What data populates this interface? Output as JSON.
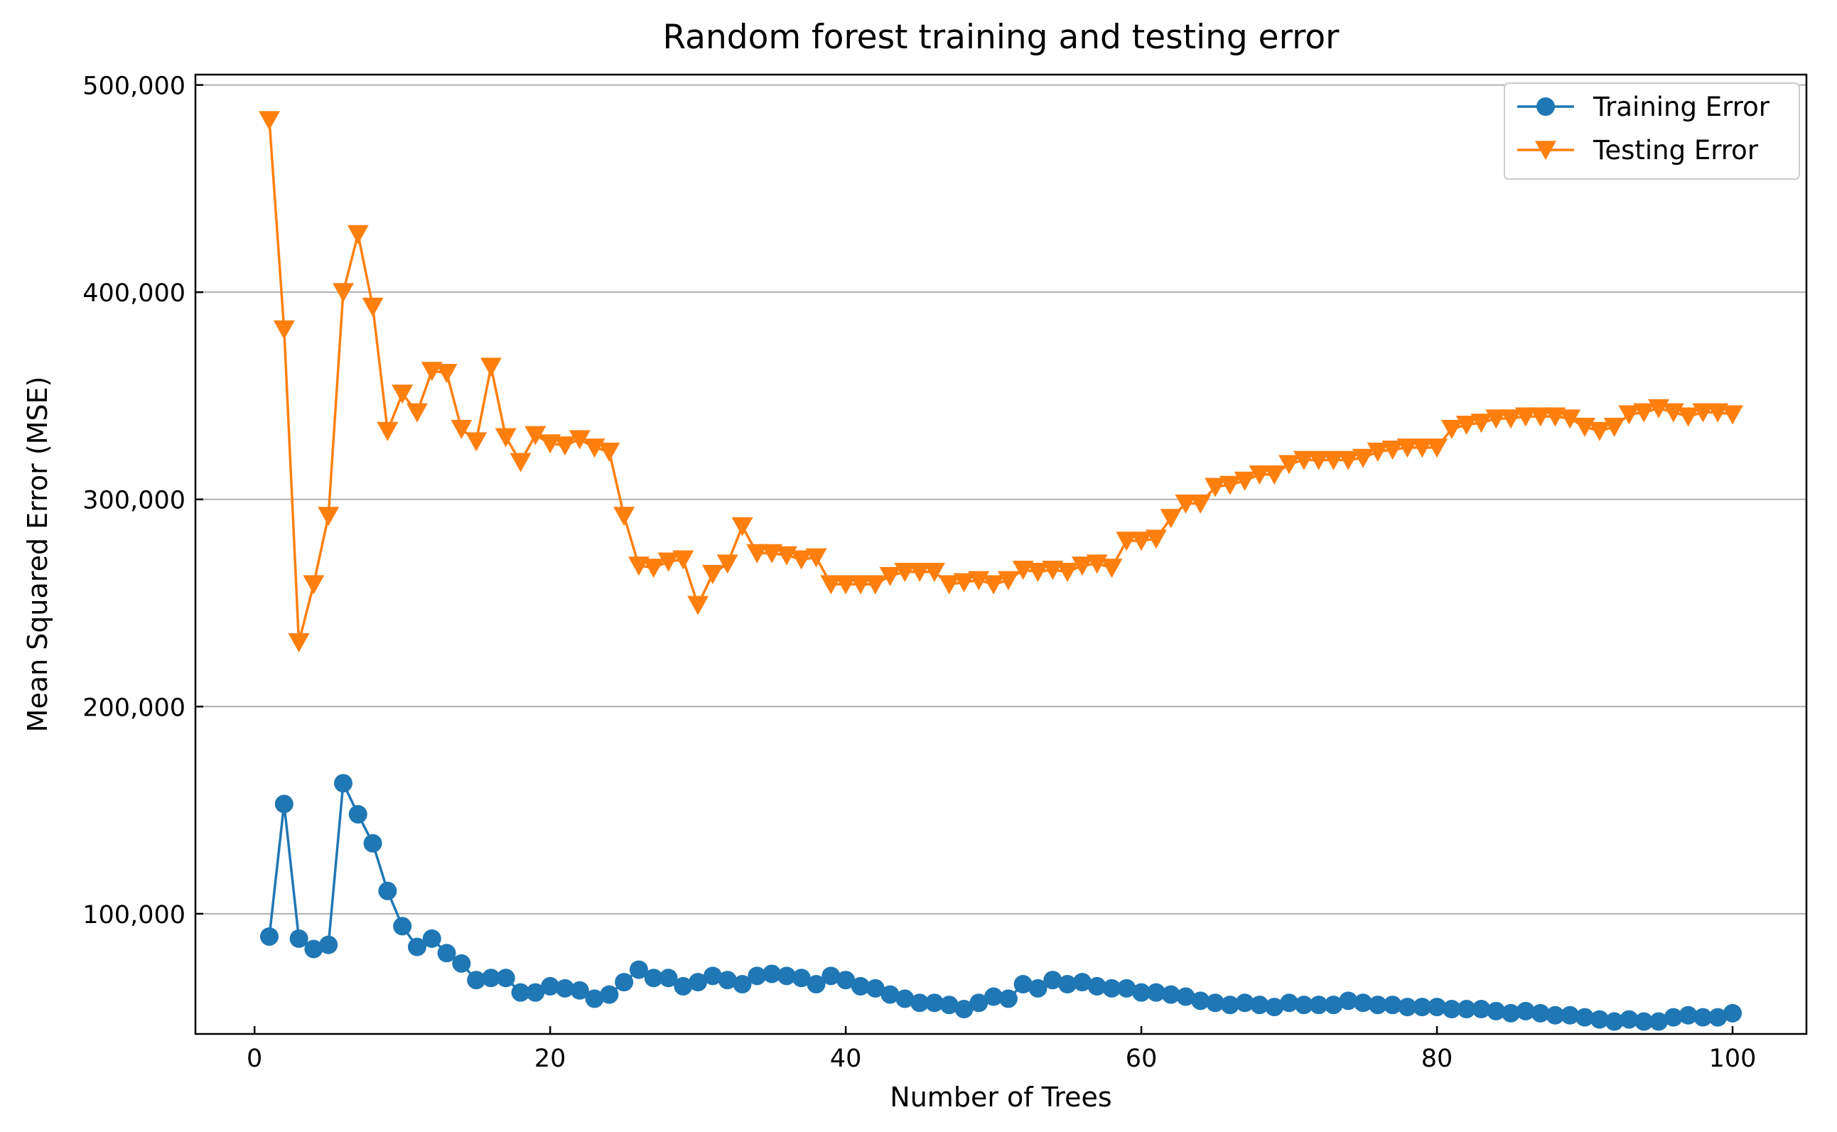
{
  "chart_data": {
    "type": "line",
    "title": "Random forest training and testing error",
    "xlabel": "Number of Trees",
    "ylabel": "Mean Squared Error (MSE)",
    "xlim": [
      -4,
      105
    ],
    "ylim": [
      42000,
      505000
    ],
    "xticks": [
      0,
      20,
      40,
      60,
      80,
      100
    ],
    "xtick_labels": [
      "0",
      "20",
      "40",
      "60",
      "80",
      "100"
    ],
    "yticks": [
      100000,
      200000,
      300000,
      400000,
      500000
    ],
    "ytick_labels": [
      "100,000",
      "200,000",
      "300,000",
      "400,000",
      "500,000"
    ],
    "grid": "horizontal",
    "legend_position": "top-right",
    "x": [
      1,
      2,
      3,
      4,
      5,
      6,
      7,
      8,
      9,
      10,
      11,
      12,
      13,
      14,
      15,
      16,
      17,
      18,
      19,
      20,
      21,
      22,
      23,
      24,
      25,
      26,
      27,
      28,
      29,
      30,
      31,
      32,
      33,
      34,
      35,
      36,
      37,
      38,
      39,
      40,
      41,
      42,
      43,
      44,
      45,
      46,
      47,
      48,
      49,
      50,
      51,
      52,
      53,
      54,
      55,
      56,
      57,
      58,
      59,
      60,
      61,
      62,
      63,
      64,
      65,
      66,
      67,
      68,
      69,
      70,
      71,
      72,
      73,
      74,
      75,
      76,
      77,
      78,
      79,
      80,
      81,
      82,
      83,
      84,
      85,
      86,
      87,
      88,
      89,
      90,
      91,
      92,
      93,
      94,
      95,
      96,
      97,
      98,
      99,
      100
    ],
    "series": [
      {
        "name": "Training Error",
        "color": "#1f77b4",
        "marker": "circle",
        "values": [
          89000,
          153000,
          88000,
          83000,
          85000,
          163000,
          148000,
          134000,
          111000,
          94000,
          84000,
          88000,
          81000,
          76000,
          68000,
          69000,
          69000,
          62000,
          62000,
          65000,
          64000,
          63000,
          59000,
          61000,
          67000,
          73000,
          69000,
          69000,
          65000,
          67000,
          70000,
          68000,
          66000,
          70000,
          71000,
          70000,
          69000,
          66000,
          70000,
          68000,
          65000,
          64000,
          61000,
          59000,
          57000,
          57000,
          56000,
          54000,
          57000,
          60000,
          59000,
          66000,
          64000,
          68000,
          66000,
          67000,
          65000,
          64000,
          64000,
          62000,
          62000,
          61000,
          60000,
          58000,
          57000,
          56000,
          57000,
          56000,
          55000,
          57000,
          56000,
          56000,
          56000,
          58000,
          57000,
          56000,
          56000,
          55000,
          55000,
          55000,
          54000,
          54000,
          54000,
          53000,
          52000,
          53000,
          52000,
          51000,
          51000,
          50000,
          49000,
          48000,
          49000,
          48000,
          48000,
          50000,
          51000,
          50000,
          50000,
          52000
        ]
      },
      {
        "name": "Testing Error",
        "color": "#ff7f0e",
        "marker": "triangle-down",
        "values": [
          483000,
          382000,
          231000,
          259000,
          292000,
          400000,
          428000,
          393000,
          333000,
          351000,
          342000,
          362000,
          361000,
          334000,
          328000,
          364000,
          330000,
          318000,
          331000,
          327000,
          326000,
          329000,
          325000,
          323000,
          292000,
          268000,
          267000,
          270000,
          271000,
          249000,
          264000,
          269000,
          287000,
          274000,
          274000,
          273000,
          271000,
          272000,
          259000,
          259000,
          259000,
          259000,
          263000,
          265000,
          265000,
          265000,
          259000,
          260000,
          261000,
          259000,
          261000,
          266000,
          265000,
          266000,
          265000,
          268000,
          269000,
          267000,
          280000,
          280000,
          281000,
          291000,
          298000,
          298000,
          306000,
          307000,
          309000,
          312000,
          312000,
          317000,
          319000,
          319000,
          319000,
          319000,
          320000,
          323000,
          324000,
          325000,
          325000,
          325000,
          334000,
          336000,
          337000,
          339000,
          339000,
          340000,
          340000,
          340000,
          339000,
          335000,
          333000,
          335000,
          341000,
          342000,
          344000,
          342000,
          340000,
          342000,
          342000,
          341000
        ]
      }
    ]
  }
}
